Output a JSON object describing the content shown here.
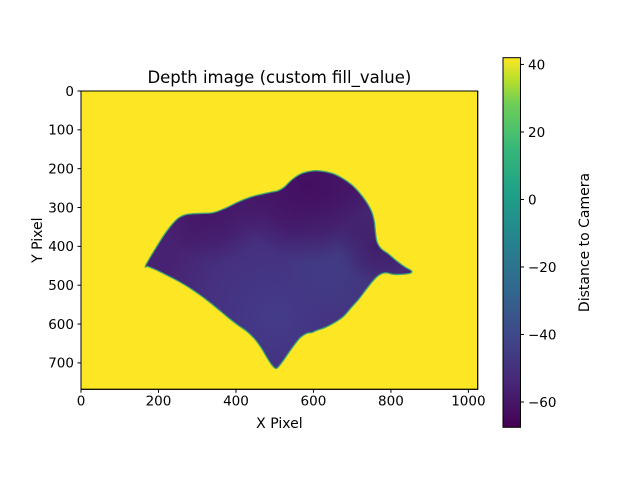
{
  "window": {
    "title": "Depth image (custom fill_value)"
  },
  "plot": {
    "title": "Depth image (custom fill_value)",
    "xlabel": "X Pixel",
    "ylabel": "Y Pixel",
    "colorbar_label": "Distance to Camera"
  },
  "chart_data": {
    "type": "heatmap",
    "title": "Depth image (custom fill_value)",
    "xlabel": "X Pixel",
    "ylabel": "Y Pixel",
    "xlim": [
      0,
      1024
    ],
    "ylim": [
      768,
      0
    ],
    "x_ticks": [
      0,
      200,
      400,
      600,
      800,
      1000
    ],
    "y_ticks": [
      0,
      100,
      200,
      300,
      400,
      500,
      600,
      700
    ],
    "colormap": "viridis",
    "colorbar_label": "Distance to Camera",
    "colorbar_tick_values": [
      40,
      20,
      0,
      -20,
      -40,
      -60
    ],
    "colorbar_tick_labels": [
      "40",
      "20",
      "0",
      "−20",
      "−40",
      "−60"
    ],
    "value_range": [
      -67.5,
      42
    ],
    "fill_value": 42,
    "fill_color": "#fde725",
    "grid": false,
    "legend": "colorbar-right",
    "object_depth_range": [
      -68,
      -40
    ],
    "object_base_color": "#482272",
    "object_edge_color": "#38a877",
    "colormap_stops_top_to_bottom": [
      "#fde725",
      "#b5de2b",
      "#6ece58",
      "#35b779",
      "#1f9e89",
      "#26828e",
      "#31688e",
      "#3e4989",
      "#482878",
      "#440154"
    ],
    "colormap_offsets": [
      0,
      6.25,
      12.5,
      25,
      37.5,
      50,
      62.5,
      75,
      87.5,
      100
    ],
    "shading_regions": [
      {
        "name": "bottom-middle-light",
        "cx": 500,
        "cy": 580,
        "r": 300,
        "color": "#433d8b",
        "opacity": 0.95
      },
      {
        "name": "right-center-light",
        "cx": 690,
        "cy": 430,
        "r": 175,
        "color": "#3f4287",
        "opacity": 0.75
      },
      {
        "name": "top-dome-dark",
        "cx": 590,
        "cy": 240,
        "r": 200,
        "color": "#430b5e",
        "opacity": 0.85
      },
      {
        "name": "top-left-ridge-dark",
        "cx": 340,
        "cy": 300,
        "r": 140,
        "color": "#430e60",
        "opacity": 0.6
      },
      {
        "name": "right-slope-dark",
        "cx": 758,
        "cy": 400,
        "r": 95,
        "color": "#420d5e",
        "opacity": 0.55
      }
    ],
    "object_outline_xy": [
      [
        167,
        449
      ],
      [
        197,
        398
      ],
      [
        222,
        360
      ],
      [
        248,
        330
      ],
      [
        268,
        319
      ],
      [
        290,
        316
      ],
      [
        315,
        315
      ],
      [
        342,
        313
      ],
      [
        372,
        302
      ],
      [
        405,
        286
      ],
      [
        438,
        273
      ],
      [
        465,
        266
      ],
      [
        488,
        261
      ],
      [
        508,
        257
      ],
      [
        524,
        248
      ],
      [
        545,
        228
      ],
      [
        568,
        213
      ],
      [
        595,
        206
      ],
      [
        620,
        206
      ],
      [
        648,
        212
      ],
      [
        672,
        223
      ],
      [
        697,
        240
      ],
      [
        718,
        261
      ],
      [
        737,
        286
      ],
      [
        750,
        310
      ],
      [
        757,
        335
      ],
      [
        760,
        362
      ],
      [
        764,
        388
      ],
      [
        775,
        406
      ],
      [
        793,
        419
      ],
      [
        813,
        436
      ],
      [
        836,
        453
      ],
      [
        853,
        463
      ],
      [
        850,
        469
      ],
      [
        828,
        472
      ],
      [
        806,
        472
      ],
      [
        786,
        468
      ],
      [
        768,
        475
      ],
      [
        752,
        491
      ],
      [
        736,
        511
      ],
      [
        717,
        536
      ],
      [
        699,
        556
      ],
      [
        678,
        580
      ],
      [
        655,
        596
      ],
      [
        630,
        609
      ],
      [
        607,
        617
      ],
      [
        596,
        622
      ],
      [
        583,
        624
      ],
      [
        567,
        634
      ],
      [
        552,
        652
      ],
      [
        536,
        674
      ],
      [
        520,
        697
      ],
      [
        505,
        714
      ],
      [
        494,
        707
      ],
      [
        481,
        688
      ],
      [
        465,
        661
      ],
      [
        447,
        637
      ],
      [
        427,
        618
      ],
      [
        404,
        602
      ],
      [
        377,
        581
      ],
      [
        347,
        556
      ],
      [
        315,
        531
      ],
      [
        282,
        508
      ],
      [
        250,
        489
      ],
      [
        219,
        473
      ],
      [
        192,
        460
      ],
      [
        173,
        452
      ]
    ]
  }
}
